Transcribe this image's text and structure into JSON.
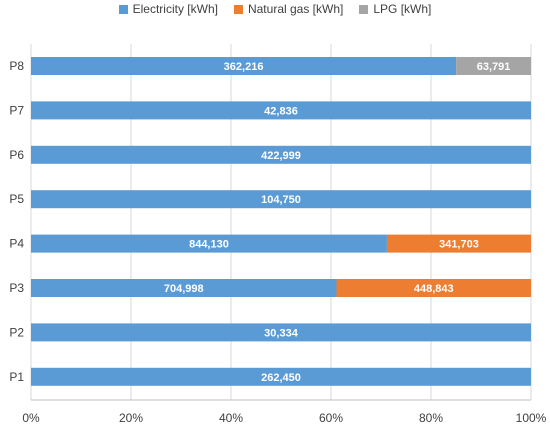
{
  "chart_data": {
    "type": "bar",
    "orientation": "horizontal",
    "stacking": "percent",
    "categories": [
      "P8",
      "P7",
      "P6",
      "P5",
      "P4",
      "P3",
      "P2",
      "P1"
    ],
    "series": [
      {
        "name": "Electricity [kWh]",
        "color": "#5b9bd5",
        "values": [
          362216,
          42836,
          422999,
          104750,
          844130,
          704998,
          30334,
          262450
        ],
        "labels": [
          "362,216",
          "42,836",
          "422,999",
          "104,750",
          "844,130",
          "704,998",
          "30,334",
          "262,450"
        ]
      },
      {
        "name": "Natural gas [kWh]",
        "color": "#ed7d31",
        "values": [
          0,
          0,
          0,
          0,
          341703,
          448843,
          0,
          0
        ],
        "labels": [
          "",
          "",
          "",
          "",
          "341,703",
          "448,843",
          "",
          ""
        ]
      },
      {
        "name": "LPG  [kWh]",
        "color": "#a5a5a5",
        "values": [
          63791,
          0,
          0,
          0,
          0,
          0,
          0,
          0
        ],
        "labels": [
          "63,791",
          "",
          "",
          "",
          "",
          "",
          "",
          ""
        ]
      }
    ],
    "xticks": [
      "0%",
      "20%",
      "40%",
      "60%",
      "80%",
      "100%"
    ],
    "xlim": [
      0,
      100
    ],
    "grid": true,
    "legend_position": "top"
  }
}
